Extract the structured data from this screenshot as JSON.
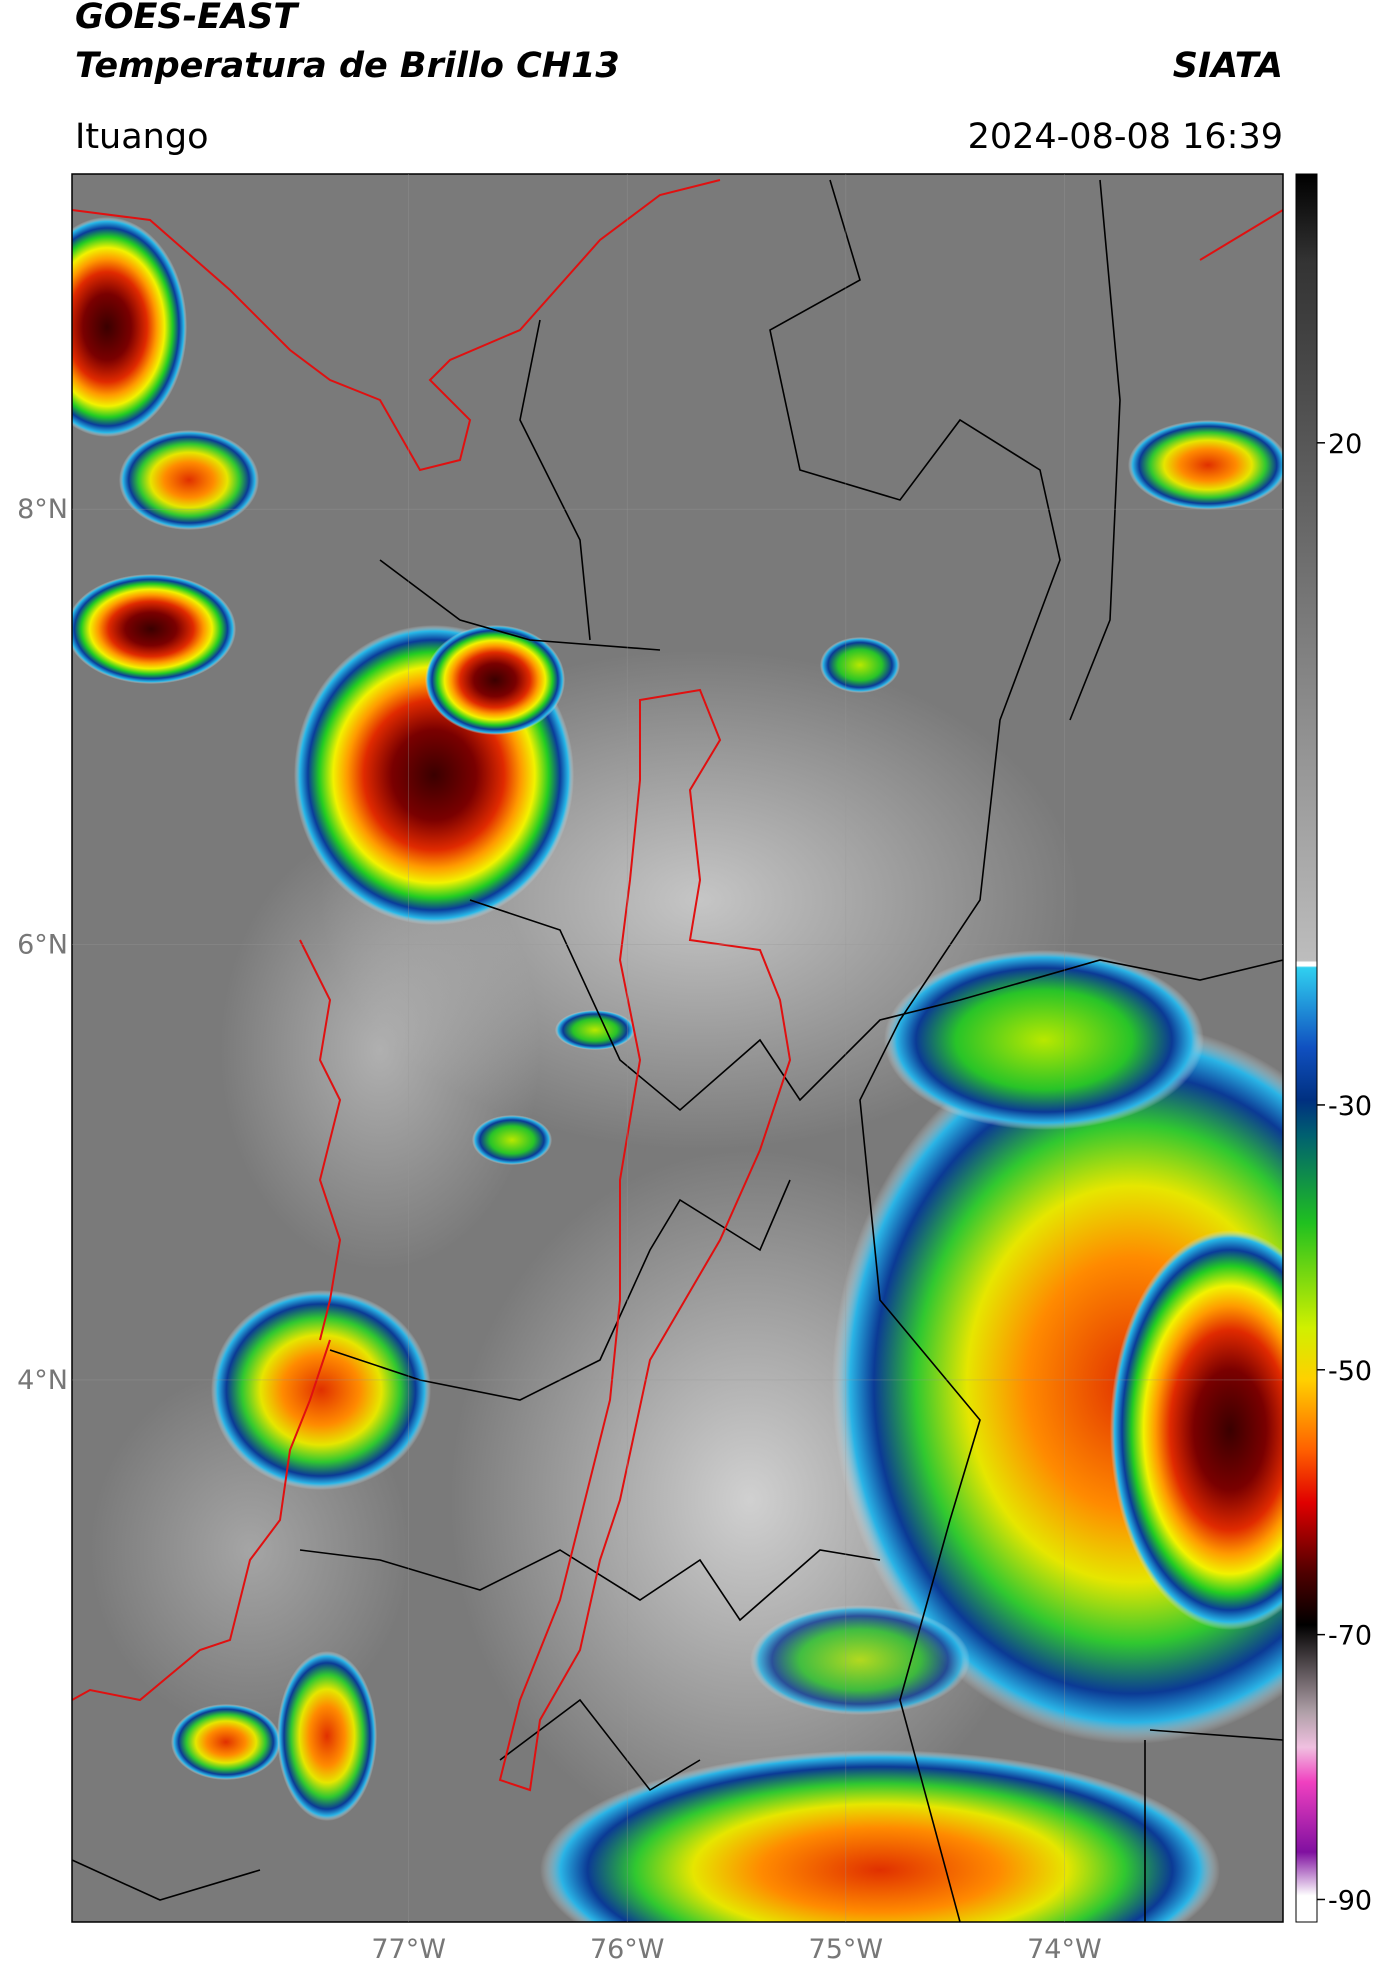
{
  "header": {
    "satellite": "GOES-EAST",
    "product": "Temperatura de Brillo CH13",
    "organization": "SIATA",
    "location": "Ituango",
    "datetime": "2024-08-08 16:39"
  },
  "map": {
    "lat_range": [
      1.51,
      9.54
    ],
    "lon_range": [
      -78.54,
      -73.0
    ],
    "lat_ticks": [
      {
        "value": 8,
        "label": "8°N"
      },
      {
        "value": 6,
        "label": "6°N"
      },
      {
        "value": 4,
        "label": "4°N"
      }
    ],
    "lon_ticks": [
      {
        "value": -77,
        "label": "77°W"
      },
      {
        "value": -76,
        "label": "76°W"
      },
      {
        "value": -75,
        "label": "75°W"
      },
      {
        "value": -74,
        "label": "74°W"
      }
    ]
  },
  "colorbar": {
    "range": [
      -91.7,
      40.3
    ],
    "ticks": [
      20,
      -30,
      -50,
      -70,
      -90
    ]
  }
}
